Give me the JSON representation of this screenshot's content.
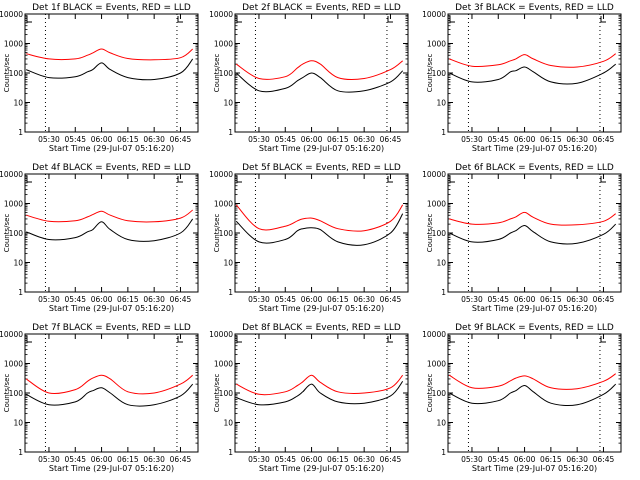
{
  "colors": {
    "background": "#ffffff",
    "axes": "#000000",
    "events": "#000000",
    "lld": "#ff0000"
  },
  "chart_data": [
    {
      "type": "line",
      "title": "Det 1f BLACK = Events, RED = LLD",
      "xlabel": "Start Time (29-Jul-07 05:16:20)",
      "ylabel": "Counts/sec",
      "xlim": [
        "05:16:20",
        "06:55:00"
      ],
      "ylim": [
        1,
        10000
      ],
      "yscale": "log",
      "x_ticks": [
        "05:30",
        "05:45",
        "06:00",
        "06:15",
        "06:30",
        "06:45"
      ],
      "y_ticks": [
        "1",
        "10",
        "100",
        "1000",
        "10000"
      ],
      "vlines": [
        "05:28",
        "06:43"
      ],
      "corner_marks": [
        "left-top",
        "right-top"
      ],
      "x": [
        "05:17",
        "05:30",
        "05:45",
        "05:52",
        "05:55",
        "06:00",
        "06:05",
        "06:15",
        "06:30",
        "06:45",
        "06:52"
      ],
      "series": [
        {
          "name": "Events",
          "color": "#000000",
          "values": [
            130,
            70,
            75,
            110,
            130,
            220,
            130,
            70,
            60,
            100,
            300
          ]
        },
        {
          "name": "LLD",
          "color": "#ff0000",
          "values": [
            450,
            300,
            300,
            400,
            480,
            650,
            480,
            310,
            280,
            330,
            650
          ]
        }
      ]
    },
    {
      "type": "line",
      "title": "Det 2f BLACK = Events, RED = LLD",
      "xlabel": "Start Time (29-Jul-07 05:16:20)",
      "ylabel": "Counts/sec",
      "xlim": [
        "05:16:20",
        "06:55:00"
      ],
      "ylim": [
        1,
        10000
      ],
      "yscale": "log",
      "x_ticks": [
        "05:30",
        "05:45",
        "06:00",
        "06:15",
        "06:30",
        "06:45"
      ],
      "y_ticks": [
        "1",
        "10",
        "100",
        "1000",
        "10000"
      ],
      "vlines": [
        "05:28",
        "06:43"
      ],
      "corner_marks": [
        "left-top",
        "right-top"
      ],
      "x": [
        "05:17",
        "05:30",
        "05:45",
        "05:52",
        "05:55",
        "06:00",
        "06:05",
        "06:15",
        "06:30",
        "06:45",
        "06:52"
      ],
      "series": [
        {
          "name": "Events",
          "color": "#000000",
          "values": [
            100,
            25,
            30,
            55,
            70,
            100,
            70,
            25,
            25,
            50,
            120
          ]
        },
        {
          "name": "LLD",
          "color": "#ff0000",
          "values": [
            200,
            65,
            75,
            150,
            200,
            260,
            200,
            70,
            65,
            130,
            260
          ]
        }
      ]
    },
    {
      "type": "line",
      "title": "Det 3f BLACK = Events, RED = LLD",
      "xlabel": "Start Time (29-Jul-07 05:16:20)",
      "ylabel": "Counts/sec",
      "xlim": [
        "05:16:20",
        "06:55:00"
      ],
      "ylim": [
        1,
        10000
      ],
      "yscale": "log",
      "x_ticks": [
        "05:30",
        "05:45",
        "06:00",
        "06:15",
        "06:30",
        "06:45"
      ],
      "y_ticks": [
        "1",
        "10",
        "100",
        "1000",
        "10000"
      ],
      "vlines": [
        "05:28",
        "06:43"
      ],
      "corner_marks": [
        "left-top",
        "right-top"
      ],
      "x": [
        "05:17",
        "05:30",
        "05:45",
        "05:52",
        "05:55",
        "06:00",
        "06:05",
        "06:15",
        "06:30",
        "06:45",
        "06:52"
      ],
      "series": [
        {
          "name": "Events",
          "color": "#000000",
          "values": [
            100,
            50,
            60,
            110,
            120,
            160,
            110,
            50,
            45,
            100,
            200
          ]
        },
        {
          "name": "LLD",
          "color": "#ff0000",
          "values": [
            300,
            170,
            190,
            260,
            300,
            420,
            300,
            180,
            160,
            250,
            450
          ]
        }
      ]
    },
    {
      "type": "line",
      "title": "Det 4f BLACK = Events, RED = LLD",
      "xlabel": "Start Time (29-Jul-07 05:16:20)",
      "ylabel": "Counts/sec",
      "xlim": [
        "05:16:20",
        "06:55:00"
      ],
      "ylim": [
        1,
        10000
      ],
      "yscale": "log",
      "x_ticks": [
        "05:30",
        "05:45",
        "06:00",
        "06:15",
        "06:30",
        "06:45"
      ],
      "y_ticks": [
        "1",
        "10",
        "100",
        "1000",
        "10000"
      ],
      "vlines": [
        "05:28",
        "06:43"
      ],
      "corner_marks": [
        "left-top",
        "right-top"
      ],
      "x": [
        "05:17",
        "05:30",
        "05:45",
        "05:52",
        "05:55",
        "06:00",
        "06:05",
        "06:15",
        "06:30",
        "06:45",
        "06:52"
      ],
      "series": [
        {
          "name": "Events",
          "color": "#000000",
          "values": [
            110,
            60,
            70,
            110,
            130,
            240,
            130,
            60,
            55,
            100,
            300
          ]
        },
        {
          "name": "LLD",
          "color": "#ff0000",
          "values": [
            400,
            250,
            260,
            350,
            420,
            550,
            400,
            260,
            240,
            320,
            600
          ]
        }
      ]
    },
    {
      "type": "line",
      "title": "Det 5f BLACK = Events, RED = LLD",
      "xlabel": "Start Time (29-Jul-07 05:16:20)",
      "ylabel": "Counts/sec",
      "xlim": [
        "05:16:20",
        "06:55:00"
      ],
      "ylim": [
        1,
        10000
      ],
      "yscale": "log",
      "x_ticks": [
        "05:30",
        "05:45",
        "06:00",
        "06:15",
        "06:30",
        "06:45"
      ],
      "y_ticks": [
        "1",
        "10",
        "100",
        "1000",
        "10000"
      ],
      "vlines": [
        "05:28",
        "06:43"
      ],
      "corner_marks": [
        "left-top",
        "right-top"
      ],
      "x": [
        "05:17",
        "05:30",
        "05:45",
        "05:52",
        "05:55",
        "06:00",
        "06:05",
        "06:15",
        "06:30",
        "06:45",
        "06:52"
      ],
      "series": [
        {
          "name": "Events",
          "color": "#000000",
          "values": [
            250,
            50,
            60,
            120,
            140,
            150,
            130,
            50,
            40,
            100,
            450
          ]
        },
        {
          "name": "LLD",
          "color": "#ff0000",
          "values": [
            900,
            140,
            170,
            260,
            300,
            320,
            260,
            140,
            120,
            250,
            900
          ]
        }
      ]
    },
    {
      "type": "line",
      "title": "Det 6f BLACK = Events, RED = LLD",
      "xlabel": "Start Time (29-Jul-07 05:16:20)",
      "ylabel": "Counts/sec",
      "xlim": [
        "05:16:20",
        "06:55:00"
      ],
      "ylim": [
        1,
        10000
      ],
      "yscale": "log",
      "x_ticks": [
        "05:30",
        "05:45",
        "06:00",
        "06:15",
        "06:30",
        "06:45"
      ],
      "y_ticks": [
        "1",
        "10",
        "100",
        "1000",
        "10000"
      ],
      "vlines": [
        "05:28",
        "06:43"
      ],
      "corner_marks": [
        "left-top",
        "right-top"
      ],
      "x": [
        "05:17",
        "05:30",
        "05:45",
        "05:52",
        "05:55",
        "06:00",
        "06:05",
        "06:15",
        "06:30",
        "06:45",
        "06:52"
      ],
      "series": [
        {
          "name": "Events",
          "color": "#000000",
          "values": [
            100,
            50,
            60,
            100,
            120,
            180,
            110,
            50,
            45,
            90,
            200
          ]
        },
        {
          "name": "LLD",
          "color": "#ff0000",
          "values": [
            300,
            200,
            220,
            300,
            350,
            500,
            340,
            200,
            190,
            250,
            450
          ]
        }
      ]
    },
    {
      "type": "line",
      "title": "Det 7f BLACK = Events, RED = LLD",
      "xlabel": "Start Time (29-Jul-07 05:16:20)",
      "ylabel": "Counts/sec",
      "xlim": [
        "05:16:20",
        "06:55:00"
      ],
      "ylim": [
        1,
        10000
      ],
      "yscale": "log",
      "x_ticks": [
        "05:30",
        "05:45",
        "06:00",
        "06:15",
        "06:30",
        "06:45"
      ],
      "y_ticks": [
        "1",
        "10",
        "100",
        "1000",
        "10000"
      ],
      "vlines": [
        "05:28",
        "06:43"
      ],
      "corner_marks": [
        "left-top",
        "right-top"
      ],
      "x": [
        "05:17",
        "05:30",
        "05:45",
        "05:52",
        "05:55",
        "06:00",
        "06:05",
        "06:15",
        "06:30",
        "06:45",
        "06:52"
      ],
      "series": [
        {
          "name": "Events",
          "color": "#000000",
          "values": [
            90,
            40,
            50,
            100,
            120,
            150,
            100,
            40,
            40,
            80,
            200
          ]
        },
        {
          "name": "LLD",
          "color": "#ff0000",
          "values": [
            300,
            100,
            130,
            250,
            320,
            400,
            300,
            110,
            100,
            200,
            400
          ]
        }
      ]
    },
    {
      "type": "line",
      "title": "Det 8f BLACK = Events, RED = LLD",
      "xlabel": "Start Time (29-Jul-07 05:16:20)",
      "ylabel": "Counts/sec",
      "xlim": [
        "05:16:20",
        "06:55:00"
      ],
      "ylim": [
        1,
        10000
      ],
      "yscale": "log",
      "x_ticks": [
        "05:30",
        "05:45",
        "06:00",
        "06:15",
        "06:30",
        "06:45"
      ],
      "y_ticks": [
        "1",
        "10",
        "100",
        "1000",
        "10000"
      ],
      "vlines": [
        "05:28",
        "06:43"
      ],
      "corner_marks": [
        "left-top",
        "right-top"
      ],
      "x": [
        "05:17",
        "05:30",
        "05:45",
        "05:52",
        "05:55",
        "06:00",
        "06:05",
        "06:15",
        "06:30",
        "06:45",
        "06:52"
      ],
      "series": [
        {
          "name": "Events",
          "color": "#000000",
          "values": [
            70,
            40,
            50,
            80,
            110,
            200,
            100,
            50,
            45,
            80,
            250
          ]
        },
        {
          "name": "LLD",
          "color": "#ff0000",
          "values": [
            200,
            90,
            110,
            180,
            240,
            400,
            230,
            110,
            100,
            150,
            400
          ]
        }
      ]
    },
    {
      "type": "line",
      "title": "Det 9f BLACK = Events, RED = LLD",
      "xlabel": "Start Time (29-Jul-07 05:16:20)",
      "ylabel": "Counts/sec",
      "xlim": [
        "05:16:20",
        "06:55:00"
      ],
      "ylim": [
        1,
        10000
      ],
      "yscale": "log",
      "x_ticks": [
        "05:30",
        "05:45",
        "06:00",
        "06:15",
        "06:30",
        "06:45"
      ],
      "y_ticks": [
        "1",
        "10",
        "100",
        "1000",
        "10000"
      ],
      "vlines": [
        "05:28",
        "06:43"
      ],
      "corner_marks": [
        "left-top",
        "right-top"
      ],
      "x": [
        "05:17",
        "05:30",
        "05:45",
        "05:52",
        "05:55",
        "06:00",
        "06:05",
        "06:15",
        "06:30",
        "06:45",
        "06:52"
      ],
      "series": [
        {
          "name": "Events",
          "color": "#000000",
          "values": [
            100,
            45,
            55,
            100,
            120,
            180,
            110,
            45,
            40,
            90,
            200
          ]
        },
        {
          "name": "LLD",
          "color": "#ff0000",
          "values": [
            400,
            150,
            170,
            260,
            320,
            380,
            300,
            150,
            140,
            250,
            450
          ]
        }
      ]
    }
  ]
}
